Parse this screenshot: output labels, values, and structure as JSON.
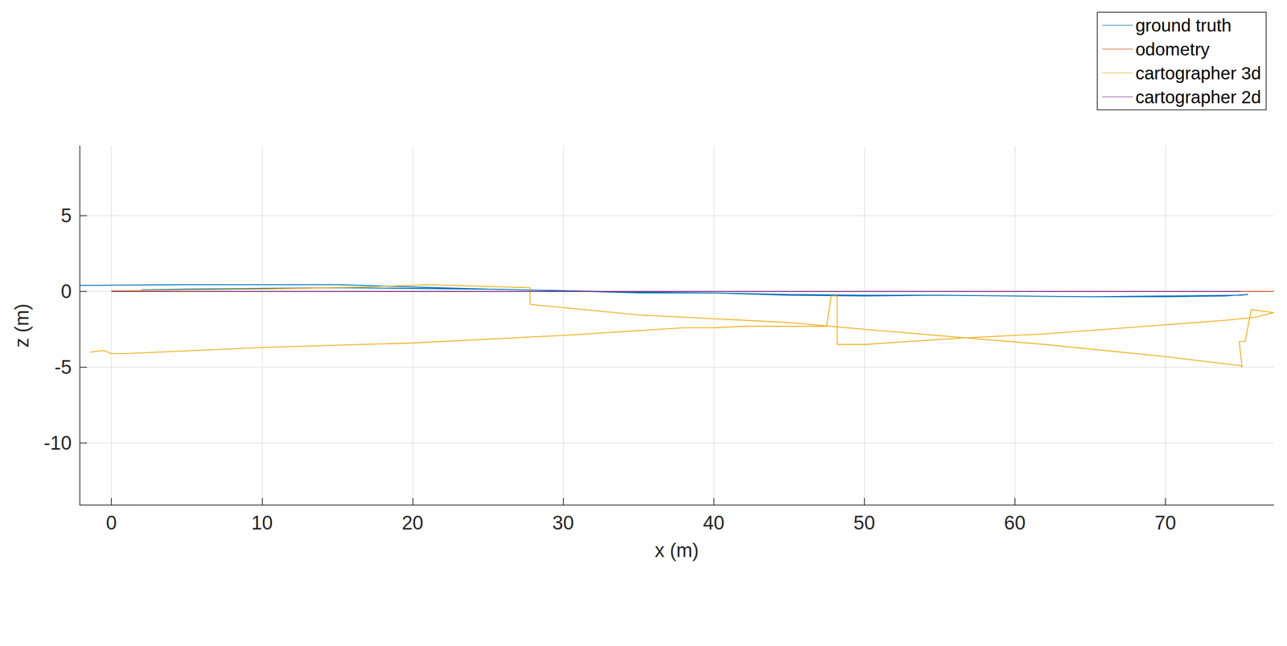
{
  "chart_data": {
    "type": "line",
    "x_label": "x (m)",
    "y_label": "z (m)",
    "xlim": [
      -2.1,
      77.2
    ],
    "ylim": [
      -14.1,
      9.6
    ],
    "xticks": [
      0,
      10,
      20,
      30,
      40,
      50,
      60,
      70
    ],
    "yticks": [
      -10,
      -5,
      0,
      5
    ],
    "grid": true,
    "legend": "top-right",
    "series": [
      {
        "name": "ground truth",
        "color": "#0072BD",
        "x": [
          -2.1,
          5,
          10,
          15,
          20,
          25,
          30,
          35,
          40,
          45,
          50,
          55,
          60,
          65,
          70,
          75,
          75.5,
          74,
          70,
          65,
          60,
          55,
          50,
          45,
          40,
          35,
          30,
          25,
          20,
          15,
          10,
          5,
          2
        ],
        "values": [
          0.4,
          0.45,
          0.45,
          0.45,
          0.3,
          0.15,
          0.05,
          -0.1,
          -0.1,
          -0.2,
          -0.25,
          -0.25,
          -0.3,
          -0.35,
          -0.3,
          -0.25,
          -0.2,
          -0.3,
          -0.35,
          -0.35,
          -0.3,
          -0.25,
          -0.3,
          -0.25,
          -0.1,
          -0.05,
          0.05,
          0.15,
          0.2,
          0.25,
          0.2,
          0.15,
          0.1
        ]
      },
      {
        "name": "odometry",
        "color": "#D95319",
        "x": [
          0,
          10,
          20,
          30,
          40,
          50,
          60,
          70,
          77.2
        ],
        "values": [
          0,
          0,
          0,
          0,
          0,
          0,
          0,
          0,
          0
        ]
      },
      {
        "name": "cartographer 3d",
        "color": "#EDB120",
        "x": [
          0,
          10,
          17,
          21,
          27.8,
          27.8,
          35,
          40,
          45,
          50,
          56,
          62,
          70,
          75,
          75.1,
          74.9,
          75.3,
          75.7,
          77.2,
          76,
          74,
          70,
          62,
          56,
          50,
          48.2,
          48.2,
          47.8,
          47.5,
          42,
          40,
          38,
          30,
          20,
          10,
          1,
          0,
          -0.5,
          -1.4
        ],
        "values": [
          0.05,
          0.15,
          0.3,
          0.45,
          0.25,
          -0.85,
          -1.55,
          -1.8,
          -2.05,
          -2.5,
          -3.0,
          -3.5,
          -4.3,
          -4.9,
          -5.0,
          -3.3,
          -3.3,
          -1.2,
          -1.4,
          -1.7,
          -1.9,
          -2.2,
          -2.8,
          -3.1,
          -3.5,
          -3.5,
          -0.3,
          -0.3,
          -2.3,
          -2.3,
          -2.4,
          -2.4,
          -2.9,
          -3.4,
          -3.7,
          -4.1,
          -4.1,
          -3.9,
          -4.0
        ]
      },
      {
        "name": "cartographer 2d",
        "color": "#7E2F8E",
        "x": [
          0,
          10,
          20,
          30,
          40,
          50,
          60,
          70,
          75
        ],
        "values": [
          0,
          0,
          0,
          0,
          0,
          0,
          0,
          0,
          0
        ]
      }
    ]
  }
}
